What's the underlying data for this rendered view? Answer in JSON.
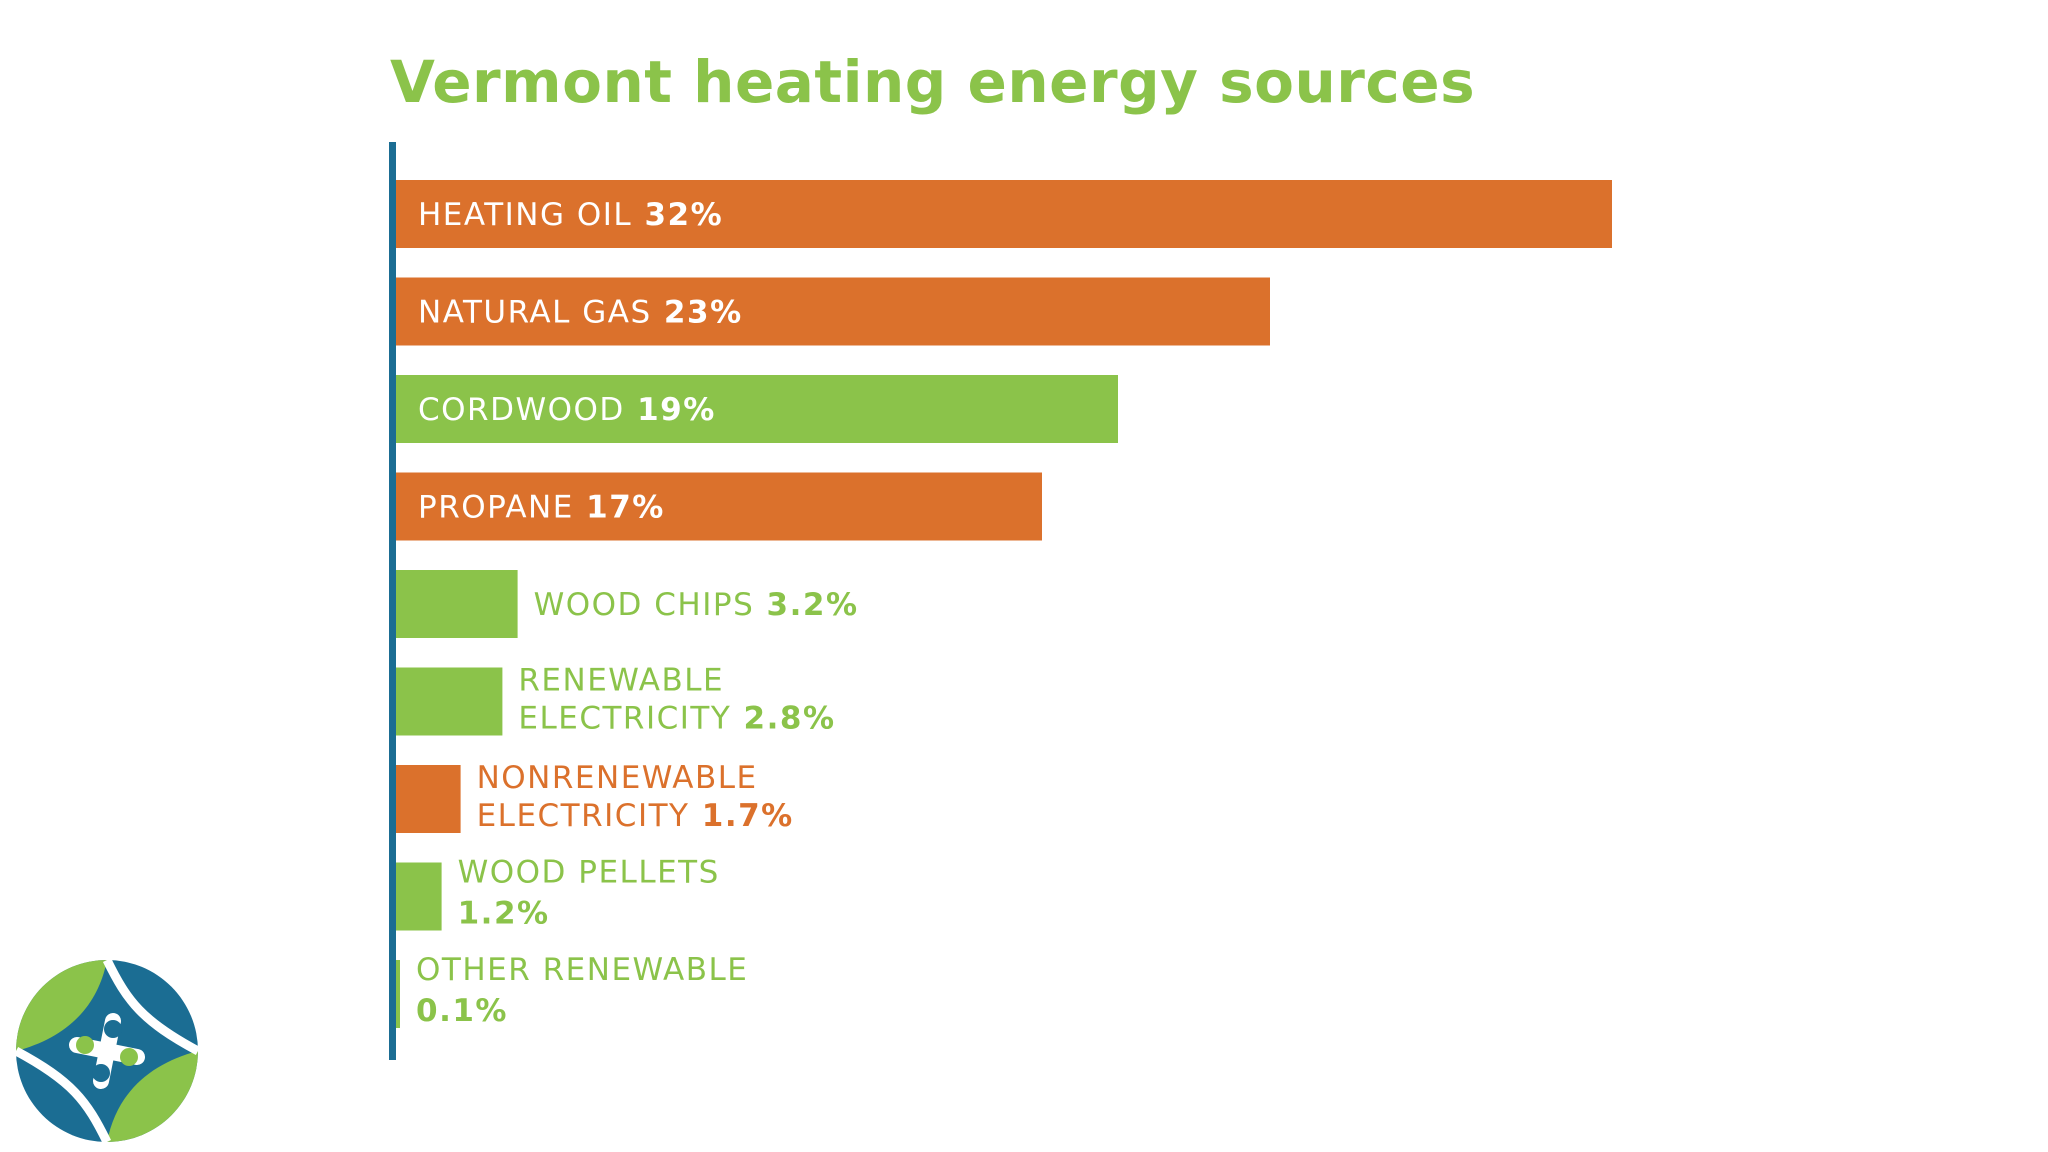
{
  "colors": {
    "orange": "#db712c",
    "green": "#8bc34a",
    "axis_blue": "#1b6d93",
    "title_green": "#8bc34a",
    "logo_blue": "#1b6d93",
    "logo_green": "#8bc34a"
  },
  "logo": {
    "icon": "vermont-energy-logo-icon"
  },
  "chart_data": {
    "type": "bar",
    "orientation": "horizontal",
    "title": "Vermont heating energy sources",
    "unit": "%",
    "xlim": [
      0,
      32
    ],
    "grid": false,
    "legend": "none",
    "categories": [
      [
        "HEATING OIL"
      ],
      [
        "NATURAL GAS"
      ],
      [
        "CORDWOOD"
      ],
      [
        "PROPANE"
      ],
      [
        "WOOD CHIPS"
      ],
      [
        "RENEWABLE",
        "ELECTRICITY"
      ],
      [
        "NONRENEWABLE",
        "ELECTRICITY"
      ],
      [
        "WOOD PELLETS"
      ],
      [
        "OTHER RENEWABLE"
      ]
    ],
    "value_labels": [
      "32%",
      "23%",
      "19%",
      "17%",
      "3.2%",
      "2.8%",
      "1.7%",
      "1.2%",
      "0.1%"
    ],
    "values": [
      32,
      23,
      19,
      17,
      3.2,
      2.8,
      1.7,
      1.2,
      0.1
    ],
    "renewable": [
      false,
      false,
      true,
      false,
      true,
      true,
      false,
      true,
      true
    ]
  }
}
